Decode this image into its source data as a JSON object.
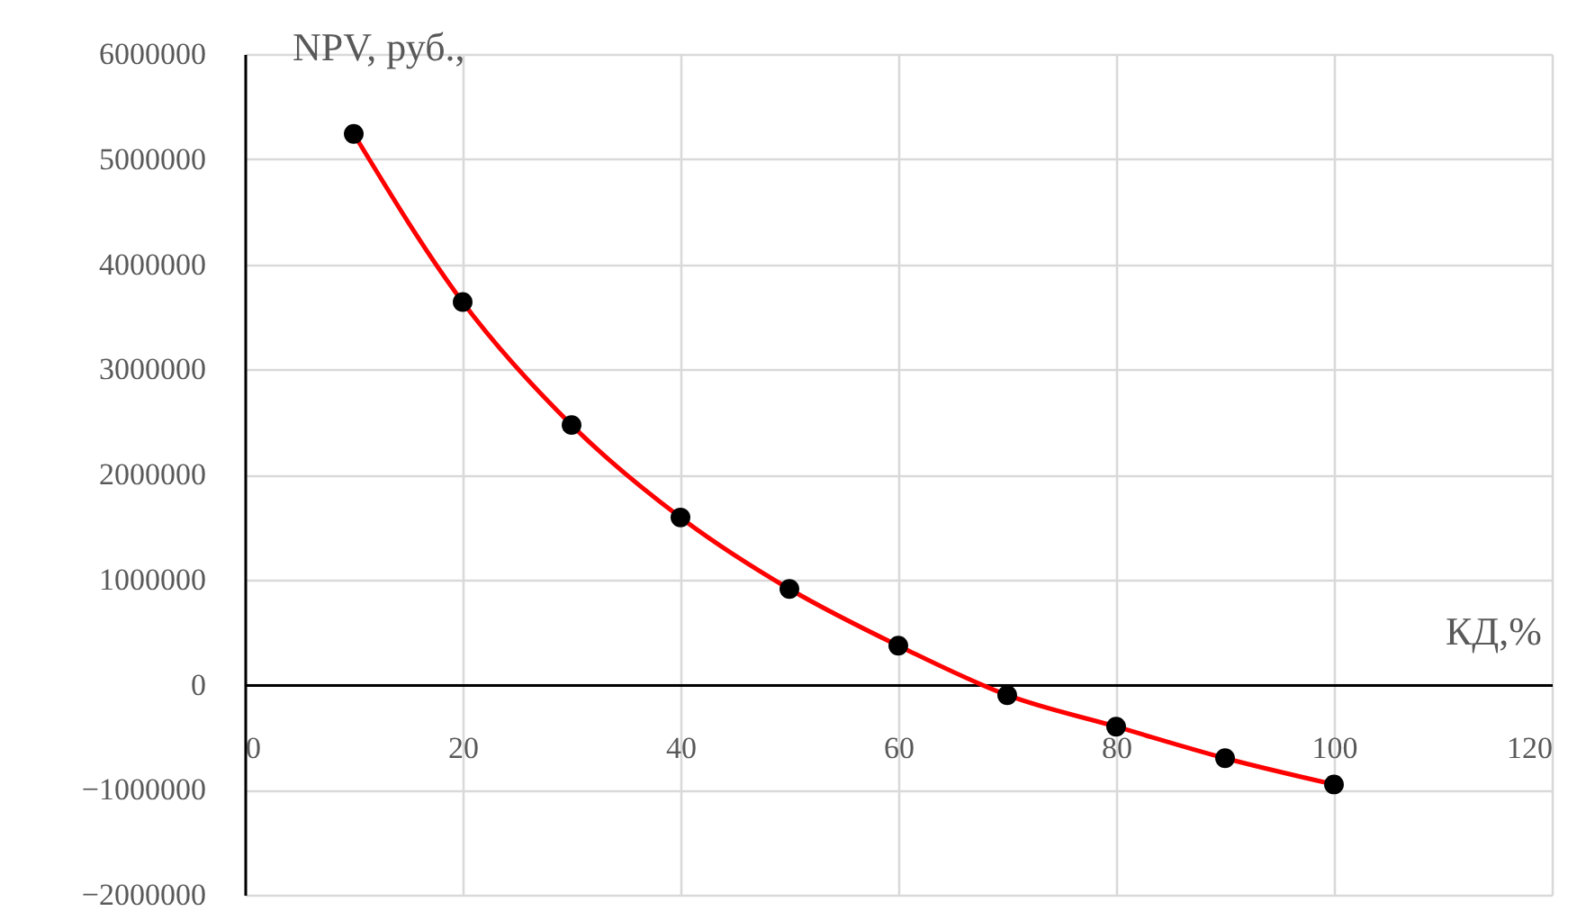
{
  "chart_data": {
    "type": "line",
    "xlabel": "КД,%",
    "ylabel": "NPV, руб.,",
    "x": [
      10,
      20,
      30,
      40,
      50,
      60,
      70,
      80,
      90,
      100
    ],
    "series": [
      {
        "color": "#ff0000",
        "values": [
          5240000,
          3640000,
          2470000,
          1590000,
          910000,
          370000,
          -100000,
          -400000,
          -700000,
          -950000
        ]
      }
    ],
    "xlim": [
      0,
      120
    ],
    "xticks": [
      0,
      20,
      40,
      60,
      80,
      100,
      120
    ],
    "ylim": [
      -2000000,
      6000000
    ],
    "yticks": [
      -2000000,
      -1000000,
      0,
      1000000,
      2000000,
      3000000,
      4000000,
      5000000,
      6000000
    ],
    "grid": true,
    "marker": "circle",
    "line_style": "solid"
  }
}
